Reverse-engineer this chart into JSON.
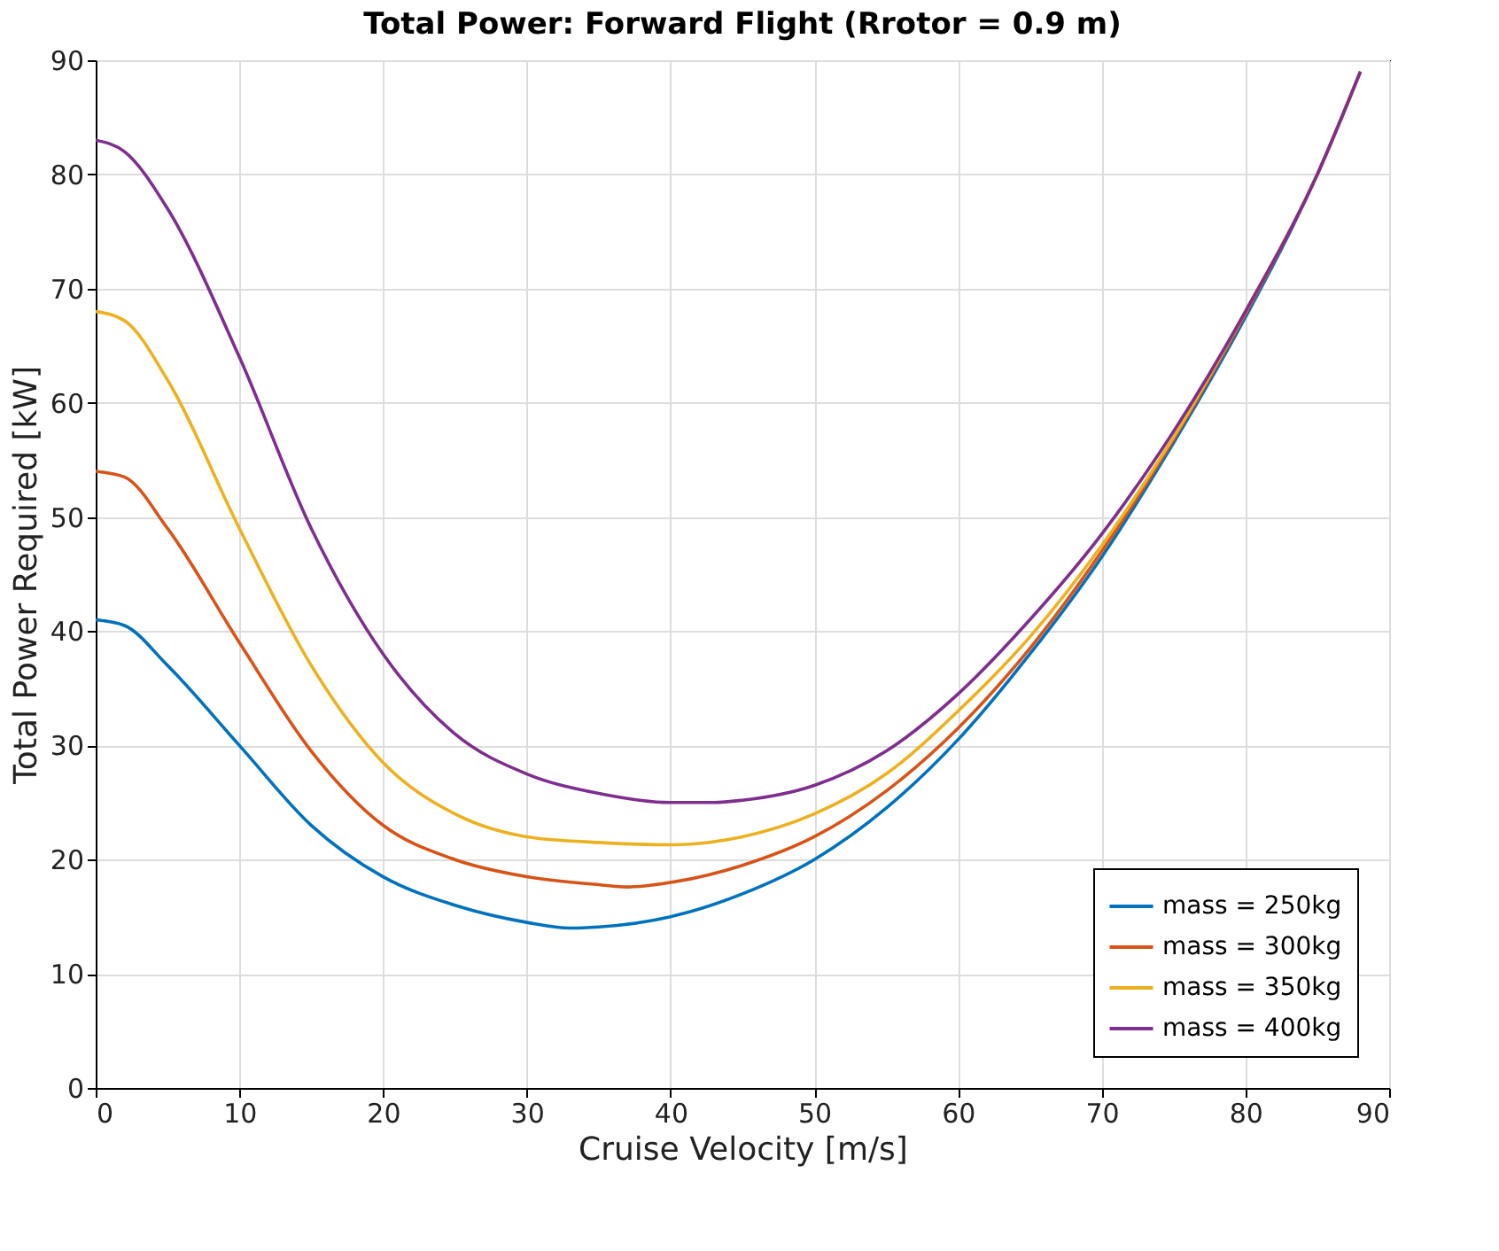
{
  "chart_data": {
    "type": "line",
    "title": "Total Power: Forward Flight (Rrotor = 0.9 m)",
    "xlabel": "Cruise Velocity [m/s]",
    "ylabel": "Total Power Required [kW]",
    "xlim": [
      0,
      90
    ],
    "ylim": [
      0,
      90
    ],
    "xticks": [
      0,
      10,
      20,
      30,
      40,
      50,
      60,
      70,
      80,
      90
    ],
    "yticks": [
      0,
      10,
      20,
      30,
      40,
      50,
      60,
      70,
      80,
      90
    ],
    "grid": true,
    "legend": "bottom right",
    "marker": "none",
    "line_style": "solid",
    "series": [
      {
        "name": "mass = 250kg",
        "color": "#0072bd",
        "x": [
          0,
          2,
          5,
          10,
          15,
          20,
          25,
          30,
          33,
          35,
          40,
          45,
          50,
          55,
          60,
          65,
          70,
          75,
          80,
          85,
          88
        ],
        "values": [
          41,
          40.5,
          37,
          30,
          23,
          18.5,
          16,
          14.5,
          14,
          14.1,
          15,
          17,
          20,
          24.5,
          30.5,
          38,
          46.5,
          56.5,
          67.5,
          80,
          89
        ]
      },
      {
        "name": "mass = 300kg",
        "color": "#d95319",
        "x": [
          0,
          2,
          5,
          10,
          15,
          20,
          25,
          30,
          35,
          37,
          40,
          45,
          50,
          55,
          60,
          65,
          70,
          75,
          80,
          85,
          88
        ],
        "values": [
          54,
          53.5,
          49,
          39,
          29.5,
          23,
          20,
          18.5,
          17.8,
          17.6,
          18,
          19.5,
          22,
          26,
          31.5,
          38.5,
          47,
          56.8,
          67.8,
          80,
          89
        ]
      },
      {
        "name": "mass = 350kg",
        "color": "#edb120",
        "x": [
          0,
          2,
          5,
          10,
          15,
          20,
          25,
          30,
          35,
          40,
          45,
          50,
          55,
          60,
          65,
          70,
          75,
          80,
          85,
          88
        ],
        "values": [
          68,
          67.2,
          62,
          49,
          37,
          28.5,
          24,
          22,
          21.5,
          21.3,
          22,
          24,
          27.5,
          33,
          39.5,
          47.5,
          57,
          68,
          80,
          89
        ]
      },
      {
        "name": "mass = 400kg",
        "color": "#7e2f8e",
        "x": [
          0,
          2,
          5,
          10,
          15,
          20,
          25,
          30,
          35,
          40,
          43,
          45,
          50,
          55,
          60,
          65,
          70,
          75,
          80,
          85,
          88
        ],
        "values": [
          83,
          82,
          77,
          64,
          49,
          38,
          31,
          27.5,
          25.8,
          25,
          25,
          25.2,
          26.5,
          29.5,
          34.5,
          41,
          48.5,
          57.5,
          68,
          80,
          89
        ]
      }
    ]
  }
}
